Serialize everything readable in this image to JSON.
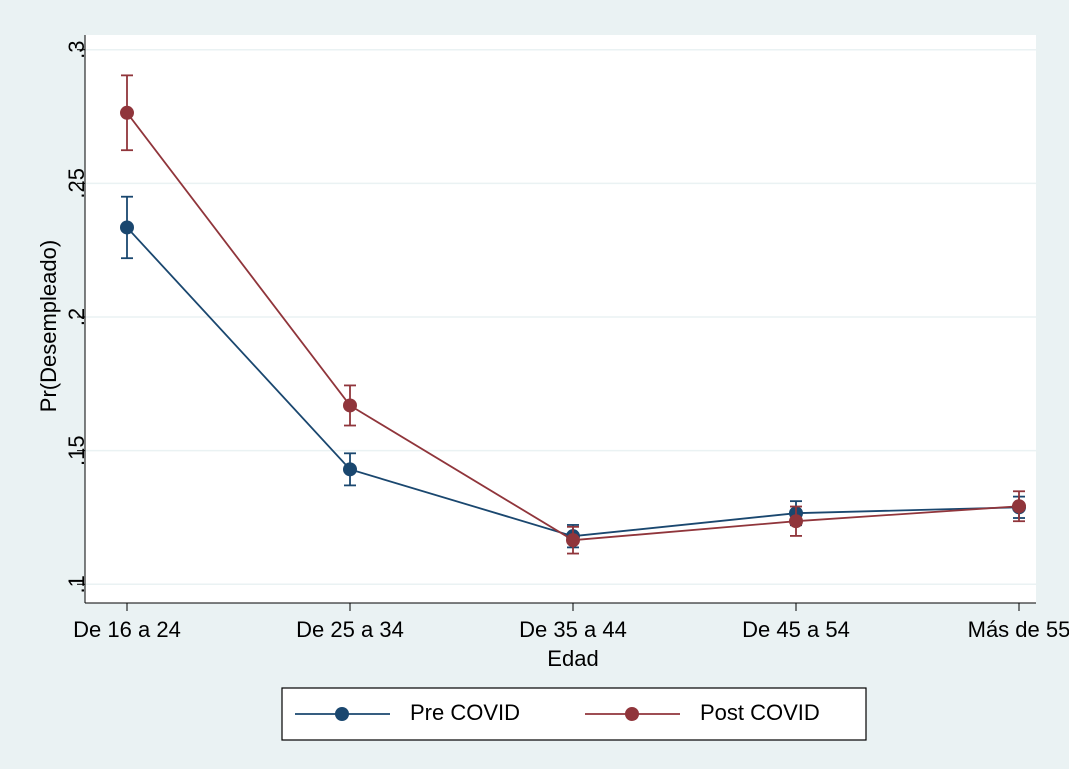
{
  "chart_data": {
    "type": "line",
    "x_label": "Edad",
    "y_label": "Pr(Desempleado)",
    "categories": [
      "De 16 a 24",
      "De 25 a 34",
      "De 35 a 44",
      "De 45 a 54",
      "Más de 55"
    ],
    "series": [
      {
        "name": "Pre COVID",
        "color": "#1a476f",
        "values": [
          0.2335,
          0.143,
          0.118,
          0.1266,
          0.1288
        ],
        "errors": [
          0.0115,
          0.006,
          0.0042,
          0.0045,
          0.004
        ]
      },
      {
        "name": "Post COVID",
        "color": "#90353b",
        "values": [
          0.2764,
          0.1669,
          0.1165,
          0.1236,
          0.1292
        ],
        "errors": [
          0.014,
          0.0075,
          0.005,
          0.0055,
          0.0056
        ]
      }
    ],
    "ylim": [
      0.093,
      0.3055
    ],
    "yticks": [
      {
        "value": 0.1,
        "label": ".1"
      },
      {
        "value": 0.15,
        "label": ".15"
      },
      {
        "value": 0.2,
        "label": ".2"
      },
      {
        "value": 0.25,
        "label": ".25"
      },
      {
        "value": 0.3,
        "label": ".3"
      }
    ],
    "grid": true,
    "legend": "bottom"
  }
}
